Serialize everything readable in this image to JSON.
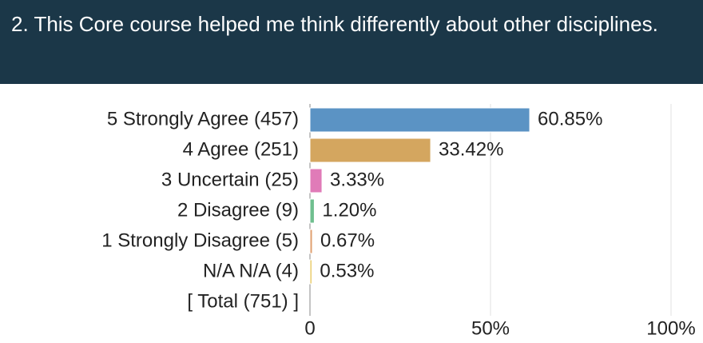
{
  "chart_data": {
    "type": "hbar",
    "title": "2. This Core course helped me think differently about other disciplines.",
    "categories": [
      "5 Strongly Agree (457)",
      "4 Agree (251)",
      "3 Uncertain (25)",
      "2 Disagree (9)",
      "1 Strongly Disagree (5)",
      "N/A N/A (4)",
      "[ Total (751) ]"
    ],
    "values": [
      60.85,
      33.42,
      3.33,
      1.2,
      0.67,
      0.53,
      null
    ],
    "value_labels": [
      "60.85%",
      "33.42%",
      "3.33%",
      "1.20%",
      "0.67%",
      "0.53%",
      null
    ],
    "colors": [
      "#5b93c4",
      "#d4a65f",
      "#e07bb8",
      "#6fbf8f",
      "#e0a070",
      "#e8c860",
      null
    ],
    "xlim": [
      0,
      100
    ],
    "xticks": [
      0,
      {
        "value": 50,
        "label": "50%"
      },
      {
        "value": 100,
        "label": "100%"
      }
    ],
    "grid": true
  }
}
